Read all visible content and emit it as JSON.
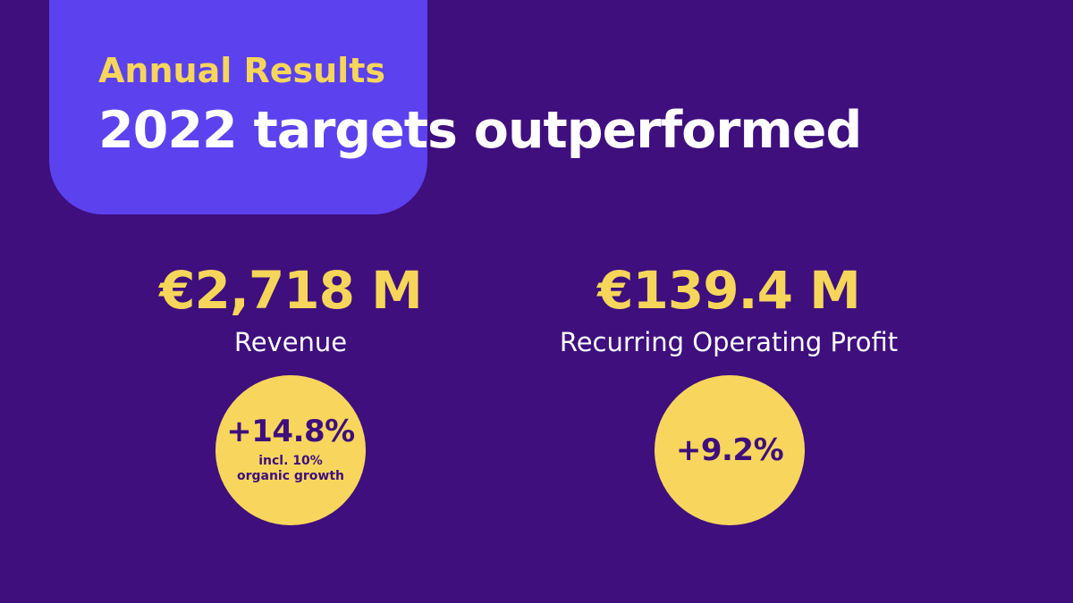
{
  "header": {
    "eyebrow": "Annual Results",
    "headline": "2022 targets outperformed"
  },
  "metrics": [
    {
      "value": "€2,718 M",
      "label": "Revenue",
      "growth": "+14.8%",
      "note": "incl. 10% organic growth"
    },
    {
      "value": "€139.4 M",
      "label": "Recurring Operating Profit",
      "growth": "+9.2%"
    }
  ],
  "colors": {
    "background": "#3e0f7d",
    "panel": "#5b42ee",
    "accent": "#f6d65a",
    "headline": "#ffffff",
    "badge_text": "#3e0f7d"
  }
}
